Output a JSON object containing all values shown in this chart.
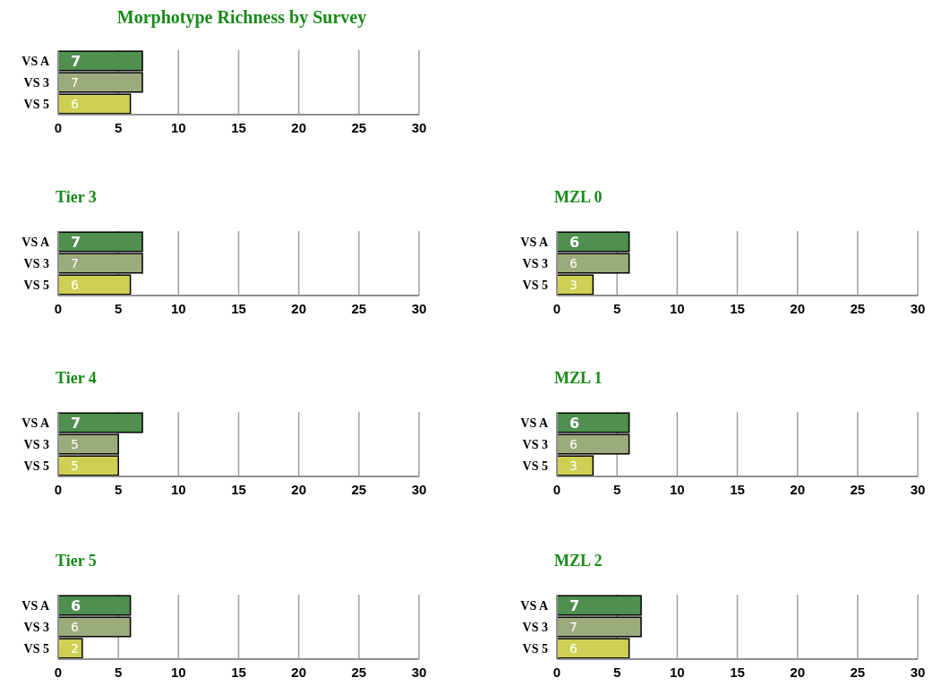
{
  "chart_data": [
    {
      "type": "bar",
      "orientation": "horizontal",
      "title": "Morphotype Richness by Survey",
      "categories": [
        "VS A",
        "VS 3",
        "VS 5"
      ],
      "values": [
        7,
        7,
        6
      ],
      "colors": [
        "#4f8f4f",
        "#9cab7c",
        "#cfcf55"
      ],
      "xlim": [
        0,
        30
      ],
      "xticks": [
        0,
        5,
        10,
        15,
        20,
        25,
        30
      ],
      "grid": "x",
      "data_labels": true
    },
    {
      "type": "bar",
      "orientation": "horizontal",
      "title": "Tier 3",
      "categories": [
        "VS A",
        "VS 3",
        "VS 5"
      ],
      "values": [
        7,
        7,
        6
      ],
      "colors": [
        "#4f8f4f",
        "#9cab7c",
        "#cfcf55"
      ],
      "xlim": [
        0,
        30
      ],
      "xticks": [
        0,
        5,
        10,
        15,
        20,
        25,
        30
      ],
      "grid": "x",
      "data_labels": true
    },
    {
      "type": "bar",
      "orientation": "horizontal",
      "title": "MZL 0",
      "categories": [
        "VS A",
        "VS 3",
        "VS 5"
      ],
      "values": [
        6,
        6,
        3
      ],
      "colors": [
        "#4f8f4f",
        "#9cab7c",
        "#cfcf55"
      ],
      "xlim": [
        0,
        30
      ],
      "xticks": [
        0,
        5,
        10,
        15,
        20,
        25,
        30
      ],
      "grid": "x",
      "data_labels": true
    },
    {
      "type": "bar",
      "orientation": "horizontal",
      "title": "Tier 4",
      "categories": [
        "VS A",
        "VS 3",
        "VS 5"
      ],
      "values": [
        7,
        5,
        5
      ],
      "colors": [
        "#4f8f4f",
        "#9cab7c",
        "#cfcf55"
      ],
      "xlim": [
        0,
        30
      ],
      "xticks": [
        0,
        5,
        10,
        15,
        20,
        25,
        30
      ],
      "grid": "x",
      "data_labels": true
    },
    {
      "type": "bar",
      "orientation": "horizontal",
      "title": "MZL 1",
      "categories": [
        "VS A",
        "VS 3",
        "VS 5"
      ],
      "values": [
        6,
        6,
        3
      ],
      "colors": [
        "#4f8f4f",
        "#9cab7c",
        "#cfcf55"
      ],
      "xlim": [
        0,
        30
      ],
      "xticks": [
        0,
        5,
        10,
        15,
        20,
        25,
        30
      ],
      "grid": "x",
      "data_labels": true
    },
    {
      "type": "bar",
      "orientation": "horizontal",
      "title": "Tier 5",
      "categories": [
        "VS A",
        "VS 3",
        "VS 5"
      ],
      "values": [
        6,
        6,
        2
      ],
      "colors": [
        "#4f8f4f",
        "#9cab7c",
        "#cfcf55"
      ],
      "xlim": [
        0,
        30
      ],
      "xticks": [
        0,
        5,
        10,
        15,
        20,
        25,
        30
      ],
      "grid": "x",
      "data_labels": true
    },
    {
      "type": "bar",
      "orientation": "horizontal",
      "title": "MZL 2",
      "categories": [
        "VS A",
        "VS 3",
        "VS 5"
      ],
      "values": [
        7,
        7,
        6
      ],
      "colors": [
        "#4f8f4f",
        "#9cab7c",
        "#cfcf55"
      ],
      "xlim": [
        0,
        30
      ],
      "xticks": [
        0,
        5,
        10,
        15,
        20,
        25,
        30
      ],
      "grid": "x",
      "data_labels": true
    }
  ]
}
